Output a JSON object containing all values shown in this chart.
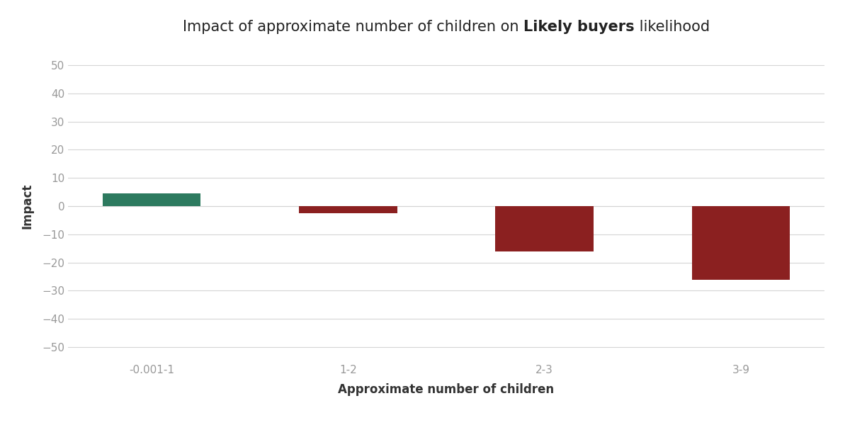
{
  "categories": [
    "-0.001-1",
    "1-2",
    "2-3",
    "3-9"
  ],
  "values": [
    4.5,
    -2.5,
    -16.0,
    -26.0
  ],
  "bar_colors": [
    "#2d7a5f",
    "#8b2020",
    "#8b2020",
    "#8b2020"
  ],
  "title_parts": [
    {
      "text": "Impact of approximate number of children on ",
      "bold": false
    },
    {
      "text": "Likely buyers",
      "bold": true
    },
    {
      "text": " likelihood",
      "bold": false
    }
  ],
  "xlabel": "Approximate number of children",
  "ylabel": "Impact",
  "ylim": [
    -55,
    55
  ],
  "yticks": [
    -50,
    -40,
    -30,
    -20,
    -10,
    0,
    10,
    20,
    30,
    40,
    50
  ],
  "background_color": "#ffffff",
  "grid_color": "#d5d5d5",
  "bar_width": 0.5,
  "title_fontsize": 15,
  "axis_label_fontsize": 12,
  "tick_fontsize": 11,
  "tick_color": "#999999",
  "text_color": "#222222",
  "label_color": "#333333"
}
